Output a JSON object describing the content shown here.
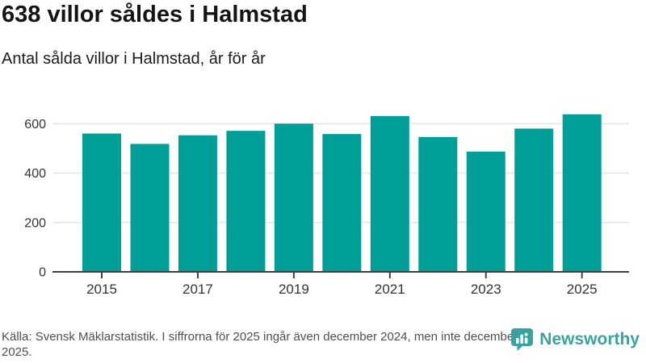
{
  "header": {
    "title": "638 villor såldes i Halmstad",
    "subtitle": "Antal sålda villor i Halmstad, år för år"
  },
  "chart_data": {
    "type": "bar",
    "title": "638 villor såldes i Halmstad",
    "subtitle": "Antal sålda villor i Halmstad, år för år",
    "categories": [
      "2015",
      "2016",
      "2017",
      "2018",
      "2019",
      "2020",
      "2021",
      "2022",
      "2023",
      "2024",
      "2025"
    ],
    "values": [
      560,
      518,
      553,
      571,
      600,
      558,
      631,
      546,
      487,
      580,
      638
    ],
    "x_tick_labels": [
      "2015",
      "2017",
      "2019",
      "2021",
      "2023",
      "2025"
    ],
    "yticks": [
      0,
      200,
      400,
      600
    ],
    "ylim": [
      0,
      660
    ],
    "grid": true,
    "legend": "none",
    "xlabel": "",
    "ylabel": ""
  },
  "footer": {
    "source": "Källa: Svensk Mäklarstatistik. I siffrorna för 2025 ingår även december 2024, men inte december 2025.",
    "brand": "Newsworthy"
  },
  "colors": {
    "bar": "#009e99",
    "accent": "#3aa39e",
    "grid": "#e6e6e6",
    "axis": "#404040",
    "tick_label": "#333333",
    "title": "#141414",
    "muted": "#4f4f4f",
    "logo_bubble": "#35a49f",
    "logo_glyph": "#ffffff"
  }
}
